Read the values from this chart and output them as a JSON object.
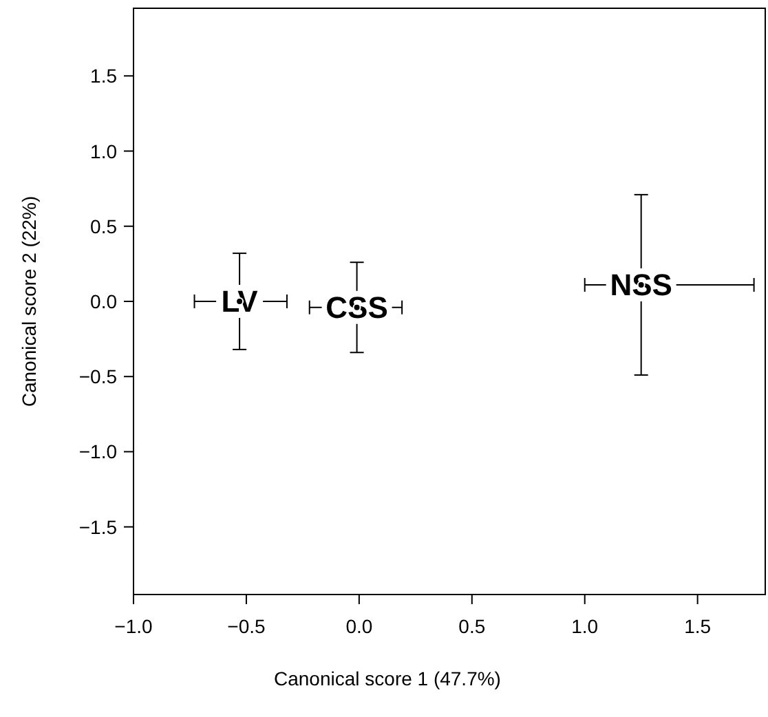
{
  "chart_data": {
    "type": "scatter",
    "xlabel": "Canonical score 1 (47.7%)",
    "ylabel": "Canonical score 2 (22%)",
    "xlim": [
      -1.0,
      1.8
    ],
    "ylim": [
      -1.95,
      1.95
    ],
    "xticks": [
      {
        "value": -1,
        "label": "−1.0"
      },
      {
        "value": -0.5,
        "label": "−0.5"
      },
      {
        "value": 0,
        "label": "0.0"
      },
      {
        "value": 0.5,
        "label": "0.5"
      },
      {
        "value": 1,
        "label": "1.0"
      },
      {
        "value": 1.5,
        "label": "1.5"
      }
    ],
    "yticks": [
      {
        "value": -1.5,
        "label": "−1.5"
      },
      {
        "value": -1,
        "label": "−1.0"
      },
      {
        "value": -0.5,
        "label": "−0.5"
      },
      {
        "value": 0,
        "label": "0.0"
      },
      {
        "value": 0.5,
        "label": "0.5"
      },
      {
        "value": 1,
        "label": "1.0"
      },
      {
        "value": 1.5,
        "label": "1.5"
      }
    ],
    "marker": "circle",
    "grid": false,
    "series": [
      {
        "name": "LV",
        "color": "#000000",
        "x": [
          -0.53
        ],
        "values": [
          0.0
        ],
        "errors": [
          [
            -0.32,
            0.32
          ]
        ],
        "xerrors": [
          [
            -0.73,
            -0.32
          ]
        ]
      },
      {
        "name": "CSS",
        "color": "#000000",
        "x": [
          -0.01
        ],
        "values": [
          -0.04
        ],
        "errors": [
          [
            -0.34,
            0.26
          ]
        ],
        "xerrors": [
          [
            -0.22,
            0.19
          ]
        ]
      },
      {
        "name": "NSS",
        "color": "#000000",
        "x": [
          1.25
        ],
        "values": [
          0.11
        ],
        "errors": [
          [
            -0.49,
            0.71
          ]
        ],
        "xerrors": [
          [
            1.0,
            1.75
          ]
        ]
      }
    ]
  }
}
